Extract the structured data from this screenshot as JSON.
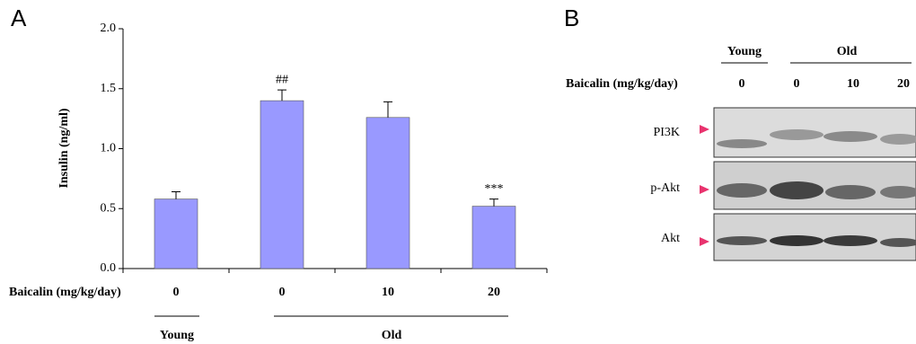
{
  "panel_a_label": "A",
  "chart_data": {
    "type": "bar",
    "y_label": "Insulin (ng/ml)",
    "x_row_label": "Baicalin (mg/kg/day)",
    "categories": [
      "0",
      "0",
      "10",
      "20"
    ],
    "values": [
      0.58,
      1.4,
      1.26,
      0.52
    ],
    "errors": [
      0.06,
      0.09,
      0.13,
      0.06
    ],
    "annotations": [
      {
        "index": 1,
        "text": "##"
      },
      {
        "index": 3,
        "text": "***"
      }
    ],
    "groups": [
      "Young",
      "Old"
    ],
    "color": "#9999ff",
    "ylim": [
      0,
      2
    ],
    "yticks": [
      {
        "value": 0,
        "label": "0.0"
      },
      0.5,
      {
        "value": 1,
        "label": "1.0"
      },
      1.5,
      {
        "value": 2,
        "label": "2.0"
      }
    ]
  },
  "panel_b": {
    "label": "B",
    "groups": [
      "Young",
      "Old"
    ],
    "dose_label": "Baicalin (mg/kg/day)",
    "doses": [
      "0",
      "0",
      "10",
      "20"
    ],
    "bands": [
      "PI3K",
      "p-Akt",
      "Akt"
    ]
  }
}
